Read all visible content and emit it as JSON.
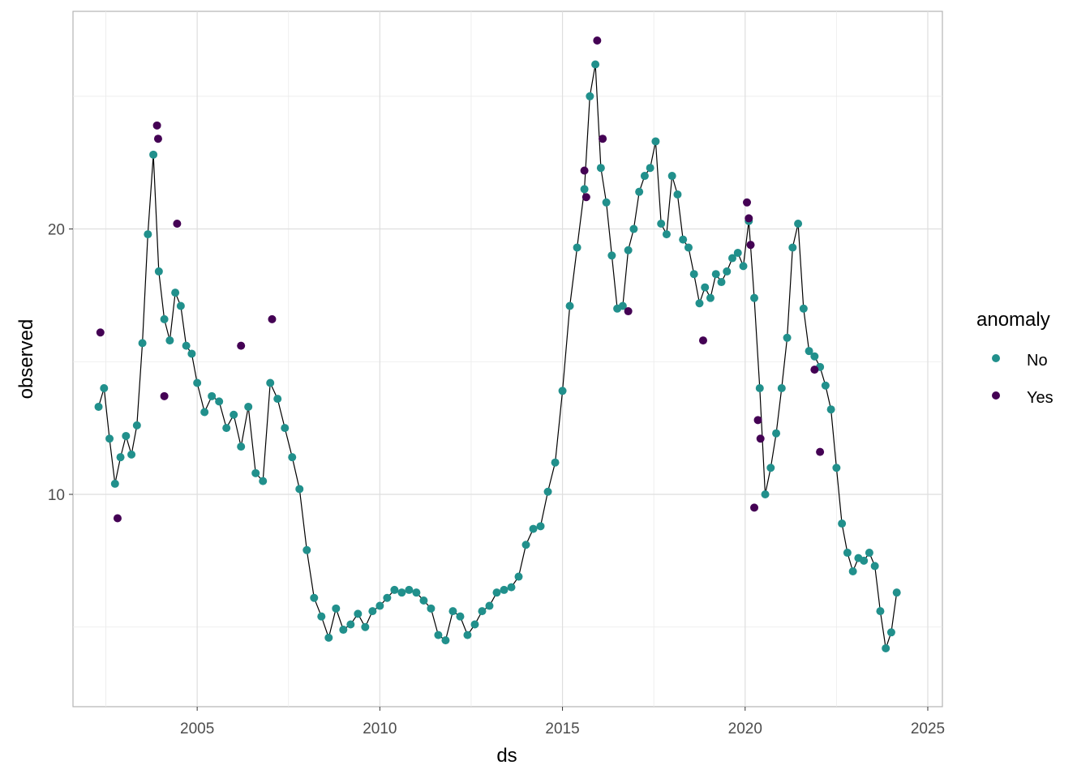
{
  "chart_data": {
    "type": "scatter",
    "title": "",
    "xlabel": "ds",
    "ylabel": "observed",
    "xlim": [
      2001.6,
      2025.4
    ],
    "ylim": [
      2.0,
      28.2
    ],
    "x_ticks": [
      2005,
      2010,
      2015,
      2020,
      2025
    ],
    "x_tick_labels": [
      "2005",
      "2010",
      "2015",
      "2020",
      "2025"
    ],
    "y_ticks": [
      10,
      20
    ],
    "y_tick_labels": [
      "10",
      "20"
    ],
    "grid": true,
    "legend": {
      "title": "anomaly",
      "position": "right",
      "entries": [
        {
          "label": "No",
          "color": "#21908C"
        },
        {
          "label": "Yes",
          "color": "#440154"
        }
      ]
    },
    "colors": {
      "No": "#21908C",
      "Yes": "#440154",
      "line": "#000000"
    },
    "series": [
      {
        "name": "observed",
        "x": [
          2002.3,
          2002.45,
          2002.6,
          2002.75,
          2002.9,
          2003.05,
          2003.2,
          2003.35,
          2003.5,
          2003.65,
          2003.8,
          2003.95,
          2004.1,
          2004.25,
          2004.4,
          2004.55,
          2004.7,
          2004.85,
          2005.0,
          2005.2,
          2005.4,
          2005.6,
          2005.8,
          2006.0,
          2006.2,
          2006.4,
          2006.6,
          2006.8,
          2007.0,
          2007.2,
          2007.4,
          2007.6,
          2007.8,
          2008.0,
          2008.2,
          2008.4,
          2008.6,
          2008.8,
          2009.0,
          2009.2,
          2009.4,
          2009.6,
          2009.8,
          2010.0,
          2010.2,
          2010.4,
          2010.6,
          2010.8,
          2011.0,
          2011.2,
          2011.4,
          2011.6,
          2011.8,
          2012.0,
          2012.2,
          2012.4,
          2012.6,
          2012.8,
          2013.0,
          2013.2,
          2013.4,
          2013.6,
          2013.8,
          2014.0,
          2014.2,
          2014.4,
          2014.6,
          2014.8,
          2015.0,
          2015.2,
          2015.4,
          2015.6,
          2015.75,
          2015.9,
          2016.05,
          2016.2,
          2016.35,
          2016.5,
          2016.65,
          2016.8,
          2016.95,
          2017.1,
          2017.25,
          2017.4,
          2017.55,
          2017.7,
          2017.85,
          2018.0,
          2018.15,
          2018.3,
          2018.45,
          2018.6,
          2018.75,
          2018.9,
          2019.05,
          2019.2,
          2019.35,
          2019.5,
          2019.65,
          2019.8,
          2019.95,
          2020.1,
          2020.25,
          2020.4,
          2020.55,
          2020.7,
          2020.85,
          2021.0,
          2021.15,
          2021.3,
          2021.45,
          2021.6,
          2021.75,
          2021.9,
          2022.05,
          2022.2,
          2022.35,
          2022.5,
          2022.65,
          2022.8,
          2022.95,
          2023.1,
          2023.25,
          2023.4,
          2023.55,
          2023.7,
          2023.85,
          2024.0,
          2024.15
        ],
        "y": [
          13.3,
          14.0,
          12.1,
          10.4,
          11.4,
          12.2,
          11.5,
          12.6,
          15.7,
          19.8,
          22.8,
          18.4,
          16.6,
          15.8,
          17.6,
          17.1,
          15.6,
          15.3,
          14.2,
          13.1,
          13.7,
          13.5,
          12.5,
          13.0,
          11.8,
          13.3,
          10.8,
          10.5,
          14.2,
          13.6,
          12.5,
          11.4,
          10.2,
          7.9,
          6.1,
          5.4,
          4.6,
          5.7,
          4.9,
          5.1,
          5.5,
          5.0,
          5.6,
          5.8,
          6.1,
          6.4,
          6.3,
          6.4,
          6.3,
          6.0,
          5.7,
          4.7,
          4.5,
          5.6,
          5.4,
          4.7,
          5.1,
          5.6,
          5.8,
          6.3,
          6.4,
          6.5,
          6.9,
          8.1,
          8.7,
          8.8,
          10.1,
          11.2,
          13.9,
          17.1,
          19.3,
          21.5,
          25.0,
          26.2,
          22.3,
          21.0,
          19.0,
          17.0,
          17.1,
          19.2,
          20.0,
          21.4,
          22.0,
          22.3,
          23.3,
          20.2,
          19.8,
          22.0,
          21.3,
          19.6,
          19.3,
          18.3,
          17.2,
          17.8,
          17.4,
          18.3,
          18.0,
          18.4,
          18.9,
          19.1,
          18.6,
          20.3,
          17.4,
          14.0,
          10.0,
          11.0,
          12.3,
          14.0,
          15.9,
          19.3,
          20.2,
          17.0,
          15.4,
          15.2,
          14.8,
          14.1,
          13.2,
          11.0,
          8.9,
          7.8,
          7.1,
          7.6,
          7.5,
          7.8,
          7.3,
          5.6,
          4.2,
          4.8,
          6.3
        ],
        "anomaly_yes_x": [
          2002.35,
          2002.82,
          2003.9,
          2003.93,
          2004.1,
          2004.45,
          2006.2,
          2007.05,
          2015.6,
          2015.65,
          2015.95,
          2016.1,
          2016.8,
          2018.85,
          2020.05,
          2020.1,
          2020.15,
          2020.25,
          2020.35,
          2020.42,
          2021.9,
          2022.05
        ],
        "anomaly_yes_y": [
          16.1,
          9.1,
          23.9,
          23.4,
          13.7,
          20.2,
          15.6,
          16.6,
          22.2,
          21.2,
          27.1,
          23.4,
          16.9,
          15.8,
          21.0,
          20.4,
          19.4,
          9.5,
          12.8,
          12.1,
          14.7,
          11.6
        ]
      }
    ]
  }
}
